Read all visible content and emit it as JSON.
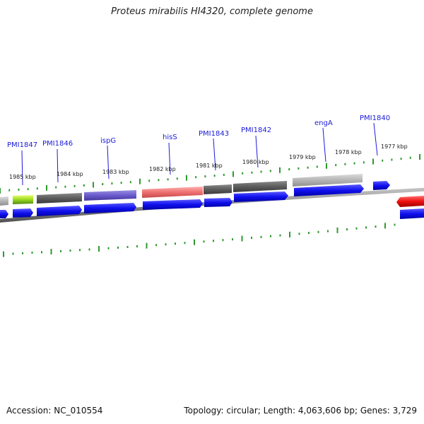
{
  "title": "Proteus mirabilis HI4320, complete genome",
  "footer": {
    "accession": "Accession: NC_010554",
    "topology": "Topology: circular; Length: 4,063,606 bp; Genes: 3,729"
  },
  "gene_labels": [
    {
      "text": "PMI1847"
    },
    {
      "text": "PMI1846"
    },
    {
      "text": "ispG"
    },
    {
      "text": "hisS"
    },
    {
      "text": "PMI1843"
    },
    {
      "text": "PMI1842"
    },
    {
      "text": "engA"
    },
    {
      "text": "PMI1840"
    }
  ],
  "scale_labels": [
    "1985 kbp",
    "1984 kbp",
    "1983 kbp",
    "1982 kbp",
    "1981 kbp",
    "1980 kbp",
    "1979 kbp",
    "1978 kbp",
    "1977 kbp"
  ],
  "colors": {
    "cds_blue": "#1010ee",
    "backbone_grey": "#8a8a8a",
    "tick_green": "#2e9a2e",
    "label_blue": "#1a1adc",
    "accent_red": "#ee1111"
  }
}
